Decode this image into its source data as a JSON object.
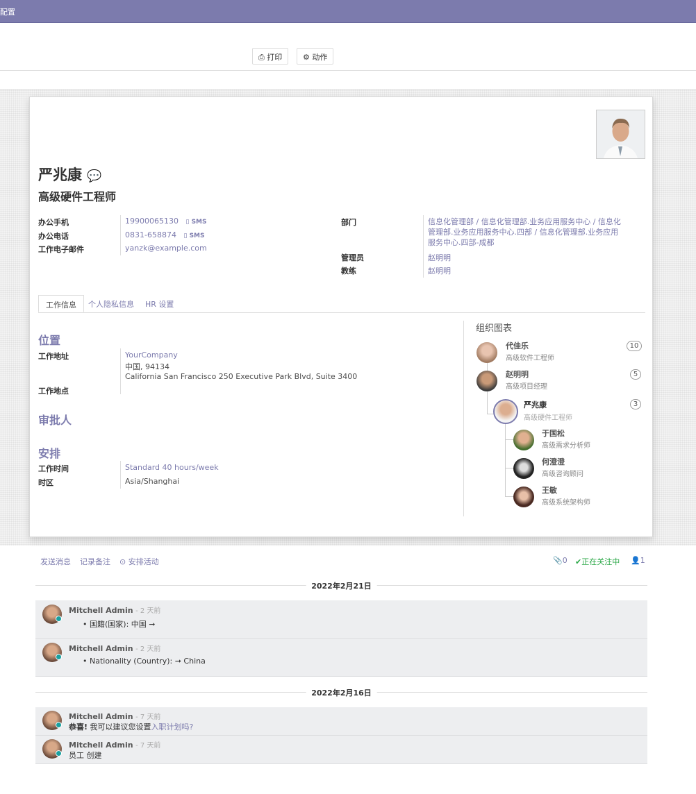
{
  "topbar": {
    "title": "配置"
  },
  "toolbar": {
    "print": "打印",
    "action": "动作"
  },
  "employee": {
    "name": "严兆康",
    "job_title": "高级硬件工程师"
  },
  "fields_left": [
    {
      "label": "办公手机",
      "value": "19900065130",
      "sms": "SMS"
    },
    {
      "label": "办公电话",
      "value": "0831-658874",
      "sms": "SMS"
    },
    {
      "label": "工作电子邮件",
      "value": "yanzk@example.com"
    }
  ],
  "fields_right": {
    "department_label": "部门",
    "department": "信息化管理部 / 信息化管理部.业务应用服务中心 / 信息化管理部.业务应用服务中心.四部 / 信息化管理部.业务应用服务中心.四部-成都",
    "manager_label": "管理员",
    "manager": "赵明明",
    "coach_label": "教练",
    "coach": "赵明明"
  },
  "tabs": [
    {
      "label": "工作信息",
      "active": true
    },
    {
      "label": "个人隐私信息"
    },
    {
      "label": "HR 设置"
    }
  ],
  "work": {
    "location_title": "位置",
    "address_label": "工作地址",
    "address": [
      "YourCompany",
      "中国, 94134",
      "California San Francisco 250 Executive Park Blvd, Suite 3400"
    ],
    "work_location_label": "工作地点",
    "approvers_title": "审批人",
    "schedule_title": "安排",
    "hours_label": "工作时间",
    "hours": "Standard 40 hours/week",
    "tz_label": "时区",
    "tz": "Asia/Shanghai"
  },
  "org": {
    "title": "组织图表",
    "managers": [
      {
        "name": "代佳乐",
        "job": "高级软件工程师",
        "count": "10"
      },
      {
        "name": "赵明明",
        "job": "高级项目经理",
        "count": "5"
      }
    ],
    "self": {
      "name": "严兆康",
      "job": "高级硬件工程师",
      "count": "3"
    },
    "subordinates": [
      {
        "name": "于国松",
        "job": "高级需求分析师"
      },
      {
        "name": "何澄澄",
        "job": "高级咨询顾问"
      },
      {
        "name": "王敏",
        "job": "高级系统架构师"
      }
    ]
  },
  "chatter": {
    "send": "发送消息",
    "log": "记录备注",
    "activity": "安排活动",
    "attachments": "0",
    "following": "正在关注中",
    "followers": "1",
    "date1": "2022年2月21日",
    "date2": "2022年2月16日",
    "messages": [
      {
        "author": "Mitchell Admin",
        "ago": "- 2 天前",
        "body": "国籍(国家): 中国 ➞"
      },
      {
        "author": "Mitchell Admin",
        "ago": "- 2 天前",
        "body": "Nationality (Country): ➞ China"
      },
      {
        "author": "Mitchell Admin",
        "ago": "- 7 天前",
        "bold": "恭喜!",
        "body": " 我可以建议您设置",
        "link": "入职计划吗?"
      },
      {
        "author": "Mitchell Admin",
        "ago": "- 7 天前",
        "body": "员工 创建"
      }
    ]
  },
  "colors": {
    "brand": "#7c7bad",
    "following": "#28a745",
    "online": "#19a0a0"
  }
}
